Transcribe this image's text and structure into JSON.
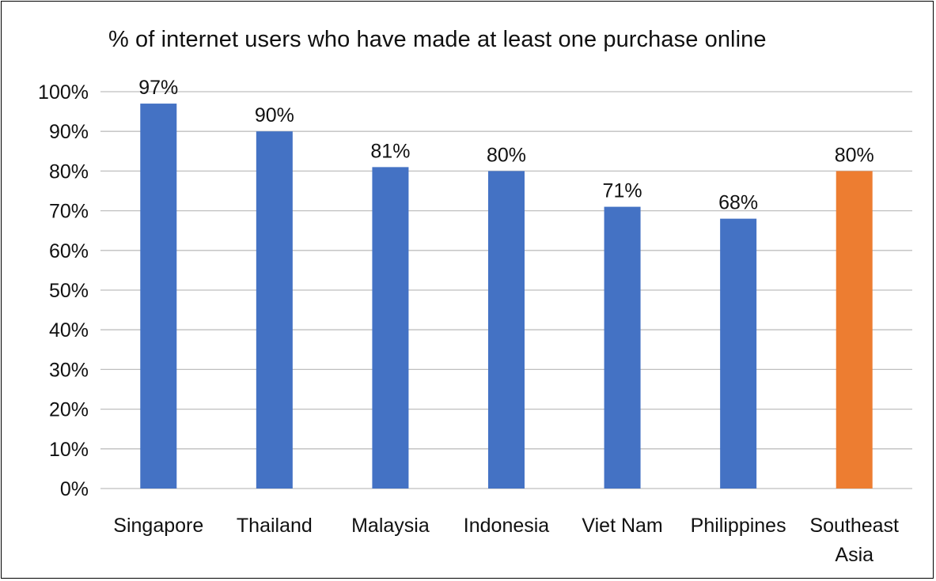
{
  "chart_data": {
    "type": "bar",
    "title": "% of internet users who have made at least one purchase online",
    "xlabel": "",
    "ylabel": "",
    "categories": [
      [
        "Singapore"
      ],
      [
        "Thailand"
      ],
      [
        "Malaysia"
      ],
      [
        "Indonesia"
      ],
      [
        "Viet Nam"
      ],
      [
        "Philippines"
      ],
      [
        "Southeast",
        "Asia"
      ]
    ],
    "values": [
      97,
      90,
      81,
      80,
      71,
      68,
      80
    ],
    "data_labels": [
      "97%",
      "90%",
      "81%",
      "80%",
      "71%",
      "68%",
      "80%"
    ],
    "bar_colors": [
      "#4472C4",
      "#4472C4",
      "#4472C4",
      "#4472C4",
      "#4472C4",
      "#4472C4",
      "#ED7D31"
    ],
    "ylim": [
      0,
      100
    ],
    "y_ticks": [
      0,
      10,
      20,
      30,
      40,
      50,
      60,
      70,
      80,
      90,
      100
    ],
    "y_tick_labels": [
      "0%",
      "10%",
      "20%",
      "30%",
      "40%",
      "50%",
      "60%",
      "70%",
      "80%",
      "90%",
      "100%"
    ],
    "grid": true,
    "gridline_color": "#BFBFBF",
    "legend": "none"
  }
}
